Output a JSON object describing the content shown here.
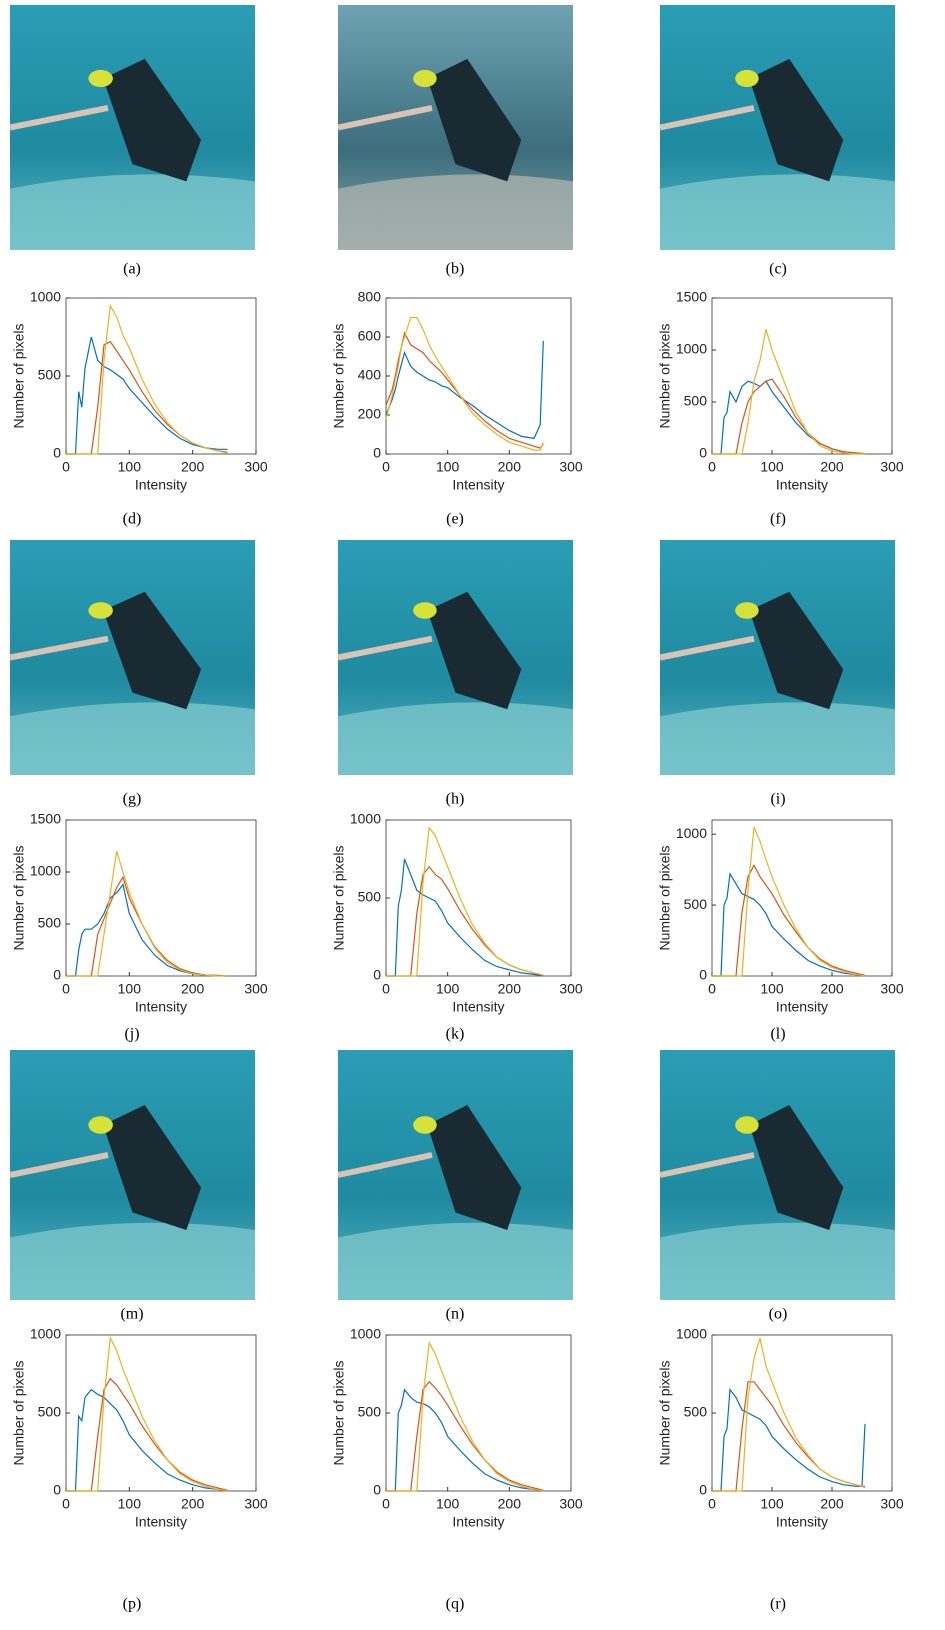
{
  "images": [
    {
      "caption": "(a)"
    },
    {
      "caption": "(b)"
    },
    {
      "caption": "(c)"
    },
    {
      "caption": "(g)"
    },
    {
      "caption": "(h)"
    },
    {
      "caption": "(i)"
    },
    {
      "caption": "(m)"
    },
    {
      "caption": "(n)"
    },
    {
      "caption": "(o)"
    }
  ],
  "chart_data": [
    {
      "type": "line",
      "caption": "(d)",
      "xlabel": "Intensity",
      "ylabel": "Number of pixels",
      "x": [
        0,
        10,
        15,
        20,
        25,
        30,
        40,
        50,
        60,
        70,
        80,
        90,
        100,
        120,
        140,
        160,
        180,
        200,
        220,
        240,
        250,
        255
      ],
      "xlim": [
        0,
        300
      ],
      "xticks": [
        0,
        100,
        200,
        300
      ],
      "ylim": [
        0,
        1000
      ],
      "yticks": [
        0,
        500,
        1000
      ],
      "series": [
        {
          "color": "#0072BD",
          "values": [
            0,
            0,
            0,
            400,
            300,
            550,
            750,
            600,
            560,
            540,
            510,
            480,
            420,
            330,
            240,
            160,
            100,
            60,
            40,
            30,
            30,
            30
          ]
        },
        {
          "color": "#D95319",
          "values": [
            0,
            0,
            0,
            0,
            0,
            0,
            0,
            300,
            700,
            720,
            660,
            600,
            540,
            400,
            280,
            190,
            120,
            70,
            40,
            20,
            15,
            10
          ]
        },
        {
          "color": "#EDB120",
          "values": [
            0,
            0,
            0,
            0,
            0,
            0,
            0,
            0,
            600,
            950,
            880,
            760,
            680,
            480,
            320,
            200,
            120,
            70,
            40,
            20,
            10,
            5
          ]
        }
      ]
    },
    {
      "type": "line",
      "caption": "(e)",
      "xlabel": "Intensity",
      "ylabel": "Number of pixels",
      "x": [
        0,
        10,
        15,
        20,
        25,
        30,
        40,
        50,
        60,
        70,
        80,
        90,
        100,
        120,
        140,
        160,
        180,
        200,
        220,
        240,
        250,
        255
      ],
      "xlim": [
        0,
        300
      ],
      "xticks": [
        0,
        100,
        200,
        300
      ],
      "ylim": [
        0,
        800
      ],
      "yticks": [
        0,
        200,
        400,
        600,
        800
      ],
      "series": [
        {
          "color": "#0072BD",
          "values": [
            200,
            280,
            330,
            400,
            460,
            520,
            450,
            420,
            400,
            380,
            370,
            350,
            340,
            290,
            250,
            200,
            160,
            120,
            90,
            80,
            150,
            580
          ]
        },
        {
          "color": "#D95319",
          "values": [
            250,
            330,
            400,
            480,
            550,
            620,
            560,
            540,
            520,
            480,
            450,
            420,
            380,
            300,
            230,
            170,
            120,
            80,
            60,
            40,
            30,
            50
          ]
        },
        {
          "color": "#EDB120",
          "values": [
            180,
            300,
            380,
            450,
            550,
            600,
            700,
            700,
            640,
            560,
            500,
            450,
            400,
            300,
            210,
            150,
            100,
            60,
            40,
            20,
            20,
            60
          ]
        }
      ]
    },
    {
      "type": "line",
      "caption": "(f)",
      "xlabel": "Intensity",
      "ylabel": "Number of pixels",
      "x": [
        0,
        10,
        15,
        20,
        25,
        30,
        40,
        50,
        60,
        70,
        80,
        90,
        100,
        120,
        140,
        160,
        180,
        200,
        220,
        240,
        250,
        255
      ],
      "xlim": [
        0,
        300
      ],
      "xticks": [
        0,
        100,
        200,
        300
      ],
      "ylim": [
        0,
        1500
      ],
      "yticks": [
        0,
        500,
        1000,
        1500
      ],
      "series": [
        {
          "color": "#0072BD",
          "values": [
            0,
            0,
            0,
            350,
            400,
            600,
            500,
            650,
            700,
            680,
            650,
            700,
            600,
            450,
            300,
            180,
            100,
            50,
            20,
            10,
            5,
            0
          ]
        },
        {
          "color": "#D95319",
          "values": [
            0,
            0,
            0,
            0,
            0,
            0,
            0,
            300,
            500,
            600,
            650,
            700,
            720,
            550,
            350,
            200,
            100,
            50,
            20,
            10,
            5,
            0
          ]
        },
        {
          "color": "#EDB120",
          "values": [
            0,
            0,
            0,
            0,
            0,
            0,
            0,
            0,
            300,
            700,
            900,
            1200,
            1000,
            700,
            400,
            200,
            80,
            30,
            10,
            0,
            0,
            0
          ]
        }
      ]
    },
    {
      "type": "line",
      "caption": "(j)",
      "xlabel": "Intensity",
      "ylabel": "Number of pixels",
      "x": [
        0,
        10,
        15,
        20,
        25,
        30,
        40,
        50,
        60,
        70,
        80,
        90,
        100,
        120,
        140,
        160,
        180,
        200,
        220,
        240,
        250,
        255
      ],
      "xlim": [
        0,
        300
      ],
      "xticks": [
        0,
        100,
        200,
        300
      ],
      "ylim": [
        0,
        1500
      ],
      "yticks": [
        0,
        500,
        1000,
        1500
      ],
      "series": [
        {
          "color": "#0072BD",
          "values": [
            0,
            0,
            0,
            250,
            400,
            450,
            450,
            500,
            600,
            750,
            800,
            880,
            600,
            350,
            200,
            100,
            50,
            20,
            10,
            5,
            0,
            0
          ]
        },
        {
          "color": "#D95319",
          "values": [
            0,
            0,
            0,
            0,
            0,
            0,
            0,
            400,
            550,
            700,
            850,
            950,
            750,
            500,
            280,
            150,
            70,
            30,
            10,
            5,
            0,
            0
          ]
        },
        {
          "color": "#EDB120",
          "values": [
            0,
            0,
            0,
            0,
            0,
            0,
            0,
            0,
            400,
            800,
            1200,
            1000,
            800,
            500,
            270,
            130,
            60,
            20,
            10,
            0,
            0,
            0
          ]
        }
      ]
    },
    {
      "type": "line",
      "caption": "(k)",
      "xlabel": "Intensity",
      "ylabel": "Number of pixels",
      "x": [
        0,
        10,
        15,
        20,
        25,
        30,
        40,
        50,
        60,
        70,
        80,
        90,
        100,
        120,
        140,
        160,
        180,
        200,
        220,
        240,
        250,
        255
      ],
      "xlim": [
        0,
        300
      ],
      "xticks": [
        0,
        100,
        200,
        300
      ],
      "ylim": [
        0,
        1000
      ],
      "yticks": [
        0,
        500,
        1000
      ],
      "series": [
        {
          "color": "#0072BD",
          "values": [
            0,
            0,
            0,
            450,
            550,
            750,
            650,
            550,
            520,
            500,
            480,
            420,
            340,
            250,
            170,
            100,
            60,
            40,
            20,
            10,
            5,
            0
          ]
        },
        {
          "color": "#D95319",
          "values": [
            0,
            0,
            0,
            0,
            0,
            0,
            0,
            400,
            650,
            700,
            650,
            620,
            560,
            420,
            300,
            200,
            120,
            70,
            40,
            20,
            10,
            5
          ]
        },
        {
          "color": "#EDB120",
          "values": [
            0,
            0,
            0,
            0,
            0,
            0,
            0,
            0,
            600,
            950,
            900,
            800,
            700,
            500,
            330,
            210,
            120,
            70,
            40,
            20,
            10,
            5
          ]
        }
      ]
    },
    {
      "type": "line",
      "caption": "(l)",
      "xlabel": "Intensity",
      "ylabel": "Number of pixels",
      "x": [
        0,
        10,
        15,
        20,
        25,
        30,
        40,
        50,
        60,
        70,
        80,
        90,
        100,
        120,
        140,
        160,
        180,
        200,
        220,
        240,
        250,
        255
      ],
      "xlim": [
        0,
        300
      ],
      "xticks": [
        0,
        100,
        200,
        300
      ],
      "ylim": [
        0,
        1100
      ],
      "yticks": [
        0,
        500,
        1000
      ],
      "series": [
        {
          "color": "#0072BD",
          "values": [
            0,
            0,
            0,
            500,
            550,
            720,
            650,
            580,
            560,
            540,
            500,
            440,
            350,
            260,
            180,
            110,
            70,
            40,
            20,
            10,
            5,
            0
          ]
        },
        {
          "color": "#D95319",
          "values": [
            0,
            0,
            0,
            0,
            0,
            0,
            0,
            450,
            700,
            780,
            700,
            640,
            580,
            430,
            310,
            200,
            120,
            70,
            40,
            20,
            10,
            5
          ]
        },
        {
          "color": "#EDB120",
          "values": [
            0,
            0,
            0,
            0,
            0,
            0,
            0,
            0,
            600,
            1050,
            950,
            820,
            700,
            500,
            330,
            200,
            110,
            60,
            30,
            10,
            5,
            0
          ]
        }
      ]
    },
    {
      "type": "line",
      "caption": "(p)",
      "xlabel": "Intensity",
      "ylabel": "Number of pixels",
      "x": [
        0,
        10,
        15,
        20,
        25,
        30,
        40,
        50,
        60,
        70,
        80,
        90,
        100,
        120,
        140,
        160,
        180,
        200,
        220,
        240,
        250,
        255
      ],
      "xlim": [
        0,
        300
      ],
      "xticks": [
        0,
        100,
        200,
        300
      ],
      "ylim": [
        0,
        1000
      ],
      "yticks": [
        0,
        500,
        1000
      ],
      "series": [
        {
          "color": "#0072BD",
          "values": [
            0,
            0,
            0,
            480,
            450,
            600,
            650,
            620,
            600,
            560,
            520,
            450,
            360,
            260,
            180,
            110,
            70,
            40,
            20,
            10,
            5,
            0
          ]
        },
        {
          "color": "#D95319",
          "values": [
            0,
            0,
            0,
            0,
            0,
            0,
            0,
            350,
            650,
            720,
            680,
            620,
            560,
            420,
            300,
            200,
            120,
            70,
            40,
            20,
            10,
            5
          ]
        },
        {
          "color": "#EDB120",
          "values": [
            0,
            0,
            0,
            0,
            0,
            0,
            0,
            0,
            600,
            980,
            900,
            780,
            680,
            480,
            320,
            200,
            110,
            60,
            30,
            10,
            5,
            0
          ]
        }
      ]
    },
    {
      "type": "line",
      "caption": "(q)",
      "xlabel": "Intensity",
      "ylabel": "Number of pixels",
      "x": [
        0,
        10,
        15,
        20,
        25,
        30,
        40,
        50,
        60,
        70,
        80,
        90,
        100,
        120,
        140,
        160,
        180,
        200,
        220,
        240,
        250,
        255
      ],
      "xlim": [
        0,
        300
      ],
      "xticks": [
        0,
        100,
        200,
        300
      ],
      "ylim": [
        0,
        1000
      ],
      "yticks": [
        0,
        500,
        1000
      ],
      "series": [
        {
          "color": "#0072BD",
          "values": [
            0,
            0,
            0,
            500,
            550,
            650,
            600,
            570,
            560,
            540,
            500,
            440,
            350,
            260,
            180,
            110,
            70,
            40,
            20,
            10,
            5,
            0
          ]
        },
        {
          "color": "#D95319",
          "values": [
            0,
            0,
            0,
            0,
            0,
            0,
            0,
            350,
            650,
            700,
            660,
            610,
            550,
            420,
            300,
            200,
            120,
            70,
            40,
            20,
            10,
            5
          ]
        },
        {
          "color": "#EDB120",
          "values": [
            0,
            0,
            0,
            0,
            0,
            0,
            0,
            0,
            600,
            950,
            880,
            770,
            670,
            480,
            320,
            200,
            110,
            60,
            30,
            10,
            5,
            0
          ]
        }
      ]
    },
    {
      "type": "line",
      "caption": "(r)",
      "xlabel": "Intensity",
      "ylabel": "Number of pixels",
      "x": [
        0,
        10,
        15,
        20,
        25,
        30,
        40,
        50,
        60,
        70,
        80,
        90,
        100,
        120,
        140,
        160,
        180,
        200,
        220,
        240,
        250,
        255
      ],
      "xlim": [
        0,
        300
      ],
      "xticks": [
        0,
        100,
        200,
        300
      ],
      "ylim": [
        0,
        1000
      ],
      "yticks": [
        0,
        500,
        1000
      ],
      "series": [
        {
          "color": "#0072BD",
          "values": [
            0,
            0,
            0,
            350,
            400,
            650,
            600,
            520,
            500,
            480,
            460,
            420,
            350,
            270,
            200,
            140,
            90,
            60,
            40,
            30,
            30,
            430
          ]
        },
        {
          "color": "#D95319",
          "values": [
            0,
            0,
            0,
            0,
            0,
            0,
            0,
            400,
            700,
            700,
            650,
            600,
            550,
            420,
            310,
            220,
            140,
            90,
            60,
            40,
            30,
            30
          ]
        },
        {
          "color": "#EDB120",
          "values": [
            0,
            0,
            0,
            0,
            0,
            0,
            0,
            0,
            600,
            850,
            980,
            800,
            700,
            500,
            340,
            230,
            140,
            90,
            60,
            40,
            30,
            20
          ]
        }
      ]
    }
  ]
}
